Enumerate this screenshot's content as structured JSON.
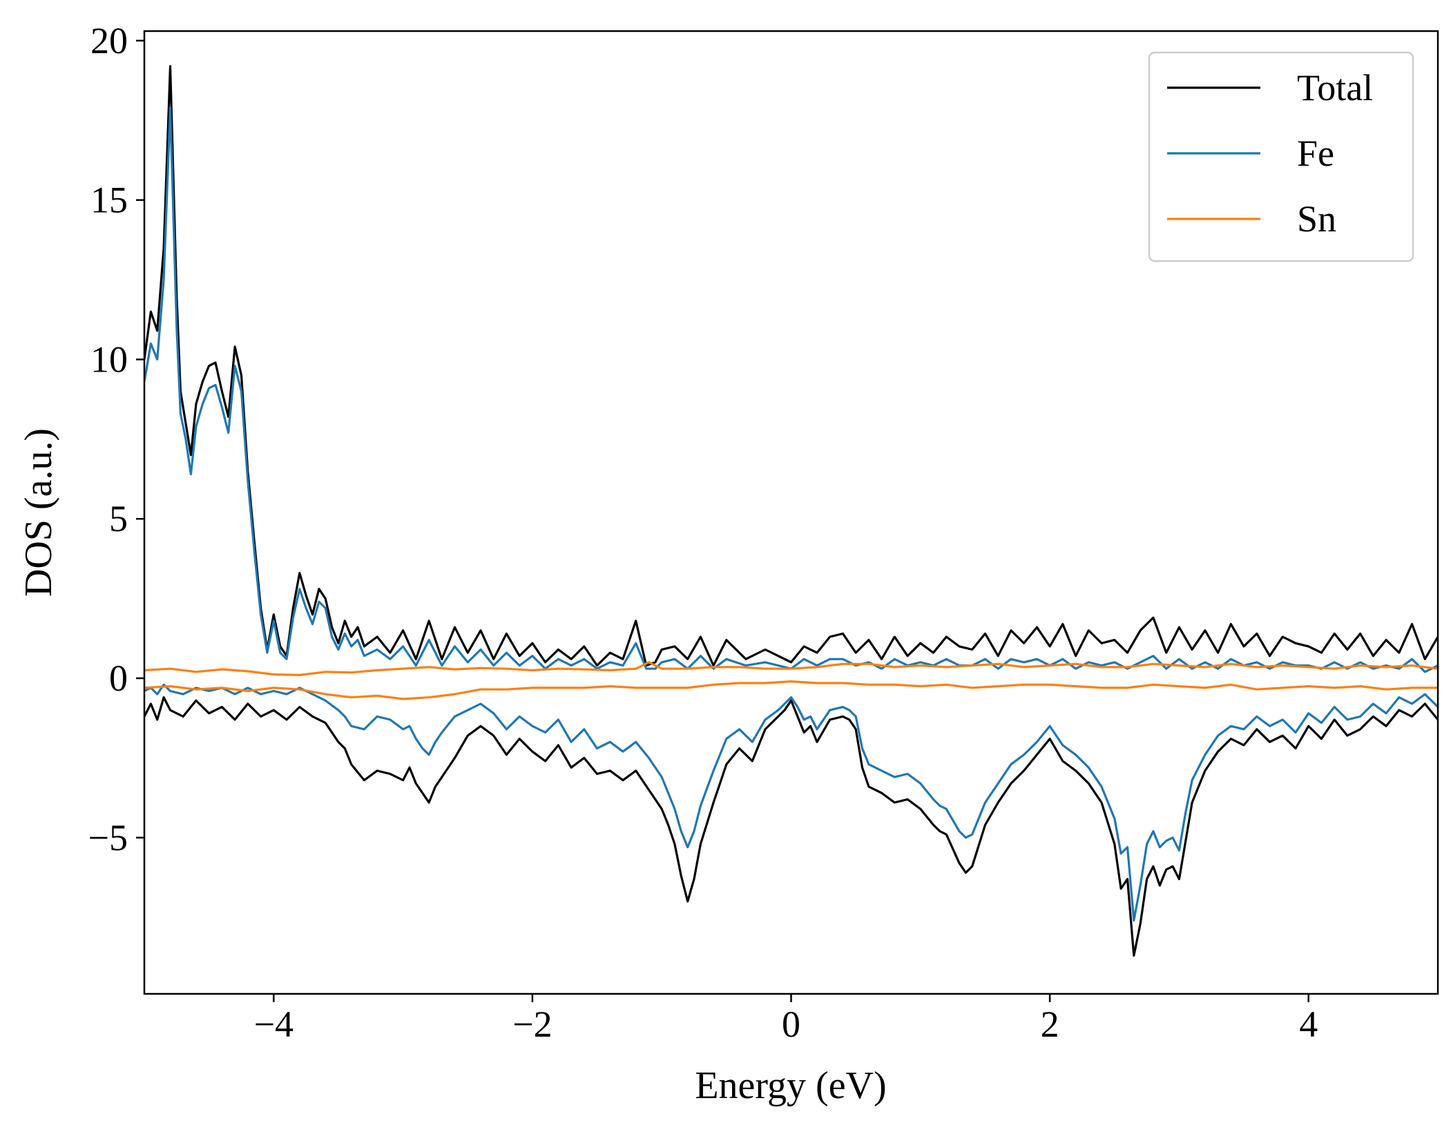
{
  "chart_data": {
    "type": "line",
    "xlabel": "Energy (eV)",
    "ylabel": "DOS (a.u.)",
    "xlim": [
      -5,
      5
    ],
    "ylim": [
      -9.9,
      20.3
    ],
    "x_ticks": [
      -4,
      -2,
      0,
      2,
      4
    ],
    "x_tick_labels": [
      "−4",
      "−2",
      "0",
      "2",
      "4"
    ],
    "y_ticks": [
      -5,
      0,
      5,
      10,
      15,
      20
    ],
    "y_tick_labels": [
      "−5",
      "0",
      "5",
      "10",
      "15",
      "20"
    ],
    "grid": false,
    "legend_position": "top-right",
    "series": [
      {
        "name": "Total",
        "color": "#000000",
        "spin": "up",
        "x": [
          -5.0,
          -4.95,
          -4.9,
          -4.85,
          -4.8,
          -4.75,
          -4.72,
          -4.68,
          -4.64,
          -4.6,
          -4.55,
          -4.5,
          -4.45,
          -4.4,
          -4.35,
          -4.3,
          -4.25,
          -4.2,
          -4.15,
          -4.1,
          -4.05,
          -4.0,
          -3.95,
          -3.9,
          -3.85,
          -3.8,
          -3.75,
          -3.7,
          -3.65,
          -3.6,
          -3.55,
          -3.5,
          -3.45,
          -3.4,
          -3.35,
          -3.3,
          -3.2,
          -3.1,
          -3.0,
          -2.9,
          -2.8,
          -2.7,
          -2.6,
          -2.5,
          -2.4,
          -2.3,
          -2.2,
          -2.1,
          -2.0,
          -1.9,
          -1.8,
          -1.7,
          -1.6,
          -1.5,
          -1.4,
          -1.3,
          -1.2,
          -1.12,
          -1.05,
          -1.0,
          -0.9,
          -0.8,
          -0.7,
          -0.6,
          -0.5,
          -0.35,
          -0.2,
          -0.1,
          0.0,
          0.1,
          0.2,
          0.3,
          0.4,
          0.5,
          0.6,
          0.7,
          0.8,
          0.9,
          1.0,
          1.1,
          1.2,
          1.3,
          1.4,
          1.5,
          1.6,
          1.7,
          1.8,
          1.9,
          2.0,
          2.1,
          2.2,
          2.3,
          2.4,
          2.5,
          2.6,
          2.7,
          2.8,
          2.9,
          3.0,
          3.1,
          3.2,
          3.3,
          3.4,
          3.5,
          3.6,
          3.7,
          3.8,
          3.9,
          4.0,
          4.1,
          4.2,
          4.3,
          4.4,
          4.5,
          4.6,
          4.7,
          4.8,
          4.9,
          5.0
        ],
        "values": [
          10.0,
          11.5,
          10.9,
          13.5,
          19.2,
          12.0,
          9.0,
          8.0,
          7.0,
          8.6,
          9.3,
          9.8,
          9.9,
          9.0,
          8.2,
          10.4,
          9.5,
          6.5,
          4.3,
          2.2,
          0.9,
          2.0,
          1.0,
          0.7,
          2.2,
          3.3,
          2.6,
          2.0,
          2.8,
          2.5,
          1.6,
          1.1,
          1.8,
          1.3,
          1.6,
          1.0,
          1.3,
          0.8,
          1.5,
          0.6,
          1.8,
          0.6,
          1.6,
          0.8,
          1.5,
          0.6,
          1.4,
          0.7,
          1.1,
          0.5,
          0.9,
          0.6,
          1.0,
          0.4,
          0.8,
          0.6,
          1.8,
          0.4,
          0.5,
          0.9,
          1.0,
          0.6,
          1.3,
          0.4,
          1.2,
          0.6,
          0.9,
          0.7,
          0.5,
          1.0,
          0.8,
          1.3,
          1.4,
          0.8,
          1.2,
          0.6,
          1.3,
          0.7,
          1.1,
          0.8,
          1.3,
          1.0,
          0.9,
          1.4,
          0.7,
          1.5,
          1.1,
          1.6,
          1.0,
          1.7,
          0.7,
          1.5,
          1.1,
          1.2,
          0.8,
          1.5,
          1.9,
          0.8,
          1.6,
          0.9,
          1.5,
          0.8,
          1.7,
          1.0,
          1.4,
          0.7,
          1.3,
          1.1,
          1.0,
          0.8,
          1.4,
          0.9,
          1.4,
          0.7,
          1.2,
          0.8,
          1.7,
          0.6,
          1.3
        ]
      },
      {
        "name": "Fe",
        "color": "#1f77b4",
        "spin": "up",
        "x": [
          -5.0,
          -4.95,
          -4.9,
          -4.85,
          -4.8,
          -4.75,
          -4.72,
          -4.68,
          -4.64,
          -4.6,
          -4.55,
          -4.5,
          -4.45,
          -4.4,
          -4.35,
          -4.3,
          -4.25,
          -4.2,
          -4.15,
          -4.1,
          -4.05,
          -4.0,
          -3.95,
          -3.9,
          -3.85,
          -3.8,
          -3.75,
          -3.7,
          -3.65,
          -3.6,
          -3.55,
          -3.5,
          -3.45,
          -3.4,
          -3.35,
          -3.3,
          -3.2,
          -3.1,
          -3.0,
          -2.9,
          -2.8,
          -2.7,
          -2.6,
          -2.5,
          -2.4,
          -2.3,
          -2.2,
          -2.1,
          -2.0,
          -1.9,
          -1.8,
          -1.7,
          -1.6,
          -1.5,
          -1.4,
          -1.3,
          -1.2,
          -1.12,
          -1.05,
          -1.0,
          -0.9,
          -0.8,
          -0.7,
          -0.6,
          -0.5,
          -0.35,
          -0.2,
          -0.1,
          0.0,
          0.1,
          0.2,
          0.3,
          0.4,
          0.5,
          0.6,
          0.7,
          0.8,
          0.9,
          1.0,
          1.1,
          1.2,
          1.3,
          1.4,
          1.5,
          1.6,
          1.7,
          1.8,
          1.9,
          2.0,
          2.1,
          2.2,
          2.3,
          2.4,
          2.5,
          2.6,
          2.7,
          2.8,
          2.9,
          3.0,
          3.1,
          3.2,
          3.3,
          3.4,
          3.5,
          3.6,
          3.7,
          3.8,
          3.9,
          4.0,
          4.1,
          4.2,
          4.3,
          4.4,
          4.5,
          4.6,
          4.7,
          4.8,
          4.9,
          5.0
        ],
        "values": [
          9.3,
          10.5,
          10.0,
          12.5,
          17.9,
          11.0,
          8.3,
          7.5,
          6.4,
          7.9,
          8.6,
          9.1,
          9.2,
          8.5,
          7.7,
          9.8,
          9.0,
          6.2,
          4.0,
          2.0,
          0.8,
          1.8,
          0.8,
          0.6,
          1.9,
          2.8,
          2.2,
          1.7,
          2.4,
          2.2,
          1.3,
          0.9,
          1.4,
          1.0,
          1.2,
          0.7,
          0.9,
          0.6,
          1.0,
          0.4,
          1.2,
          0.4,
          1.0,
          0.5,
          0.9,
          0.4,
          0.8,
          0.4,
          0.7,
          0.3,
          0.6,
          0.4,
          0.6,
          0.3,
          0.5,
          0.4,
          1.1,
          0.3,
          0.3,
          0.5,
          0.6,
          0.3,
          0.7,
          0.3,
          0.6,
          0.4,
          0.5,
          0.4,
          0.3,
          0.6,
          0.4,
          0.6,
          0.6,
          0.4,
          0.5,
          0.3,
          0.6,
          0.4,
          0.5,
          0.4,
          0.6,
          0.4,
          0.4,
          0.6,
          0.3,
          0.6,
          0.5,
          0.6,
          0.4,
          0.6,
          0.3,
          0.5,
          0.4,
          0.5,
          0.3,
          0.5,
          0.7,
          0.3,
          0.6,
          0.3,
          0.5,
          0.3,
          0.6,
          0.4,
          0.5,
          0.3,
          0.5,
          0.4,
          0.4,
          0.3,
          0.5,
          0.3,
          0.5,
          0.3,
          0.4,
          0.3,
          0.6,
          0.2,
          0.4
        ]
      },
      {
        "name": "Sn",
        "color": "#ff7f0e",
        "spin": "up",
        "x": [
          -5.0,
          -4.8,
          -4.6,
          -4.4,
          -4.2,
          -4.0,
          -3.8,
          -3.6,
          -3.4,
          -3.2,
          -3.0,
          -2.8,
          -2.6,
          -2.4,
          -2.2,
          -2.0,
          -1.8,
          -1.6,
          -1.4,
          -1.2,
          -1.1,
          -1.0,
          -0.8,
          -0.6,
          -0.4,
          -0.2,
          0.0,
          0.2,
          0.4,
          0.6,
          0.8,
          1.0,
          1.2,
          1.4,
          1.6,
          1.8,
          2.0,
          2.2,
          2.4,
          2.6,
          2.8,
          3.0,
          3.2,
          3.4,
          3.6,
          3.8,
          4.0,
          4.2,
          4.4,
          4.6,
          4.8,
          5.0
        ],
        "values": [
          0.25,
          0.3,
          0.2,
          0.28,
          0.22,
          0.12,
          0.1,
          0.2,
          0.18,
          0.25,
          0.3,
          0.35,
          0.28,
          0.32,
          0.3,
          0.25,
          0.3,
          0.28,
          0.25,
          0.3,
          0.5,
          0.3,
          0.3,
          0.35,
          0.35,
          0.3,
          0.3,
          0.35,
          0.45,
          0.45,
          0.35,
          0.4,
          0.35,
          0.4,
          0.45,
          0.35,
          0.4,
          0.45,
          0.35,
          0.35,
          0.45,
          0.4,
          0.35,
          0.45,
          0.35,
          0.4,
          0.35,
          0.3,
          0.4,
          0.35,
          0.4,
          0.3
        ]
      },
      {
        "name": "Total",
        "color": "#000000",
        "spin": "down",
        "x": [
          -5.0,
          -4.95,
          -4.9,
          -4.85,
          -4.8,
          -4.7,
          -4.6,
          -4.5,
          -4.4,
          -4.3,
          -4.2,
          -4.1,
          -4.0,
          -3.9,
          -3.8,
          -3.7,
          -3.6,
          -3.5,
          -3.45,
          -3.4,
          -3.3,
          -3.2,
          -3.1,
          -3.0,
          -2.95,
          -2.9,
          -2.85,
          -2.8,
          -2.75,
          -2.7,
          -2.6,
          -2.5,
          -2.4,
          -2.3,
          -2.2,
          -2.1,
          -2.0,
          -1.9,
          -1.8,
          -1.7,
          -1.6,
          -1.5,
          -1.4,
          -1.3,
          -1.2,
          -1.1,
          -1.0,
          -0.95,
          -0.9,
          -0.85,
          -0.8,
          -0.75,
          -0.7,
          -0.6,
          -0.55,
          -0.5,
          -0.4,
          -0.3,
          -0.2,
          -0.1,
          -0.05,
          0.0,
          0.05,
          0.1,
          0.15,
          0.2,
          0.3,
          0.4,
          0.45,
          0.5,
          0.55,
          0.6,
          0.7,
          0.8,
          0.9,
          1.0,
          1.1,
          1.15,
          1.2,
          1.3,
          1.35,
          1.4,
          1.5,
          1.6,
          1.7,
          1.8,
          1.9,
          2.0,
          2.1,
          2.2,
          2.3,
          2.4,
          2.5,
          2.55,
          2.6,
          2.65,
          2.7,
          2.75,
          2.8,
          2.85,
          2.9,
          2.95,
          3.0,
          3.05,
          3.1,
          3.2,
          3.3,
          3.4,
          3.5,
          3.6,
          3.7,
          3.8,
          3.9,
          4.0,
          4.1,
          4.2,
          4.3,
          4.4,
          4.5,
          4.6,
          4.7,
          4.8,
          4.9,
          5.0
        ],
        "values": [
          -1.2,
          -0.8,
          -1.3,
          -0.6,
          -1.0,
          -1.2,
          -0.7,
          -1.1,
          -0.9,
          -1.3,
          -0.8,
          -1.2,
          -1.0,
          -1.3,
          -0.9,
          -1.2,
          -1.4,
          -2.0,
          -2.2,
          -2.7,
          -3.2,
          -2.9,
          -3.0,
          -3.2,
          -2.8,
          -3.3,
          -3.6,
          -3.9,
          -3.4,
          -3.1,
          -2.5,
          -1.8,
          -1.5,
          -1.8,
          -2.4,
          -1.9,
          -2.3,
          -2.6,
          -2.1,
          -2.8,
          -2.5,
          -3.0,
          -2.9,
          -3.2,
          -2.9,
          -3.5,
          -4.1,
          -4.6,
          -5.2,
          -6.2,
          -7.0,
          -6.3,
          -5.2,
          -3.9,
          -3.3,
          -2.7,
          -2.2,
          -2.6,
          -1.6,
          -1.2,
          -1.0,
          -0.7,
          -1.2,
          -1.7,
          -1.5,
          -2.0,
          -1.3,
          -1.2,
          -1.3,
          -1.6,
          -2.8,
          -3.4,
          -3.6,
          -3.9,
          -3.8,
          -4.1,
          -4.6,
          -4.8,
          -4.9,
          -5.8,
          -6.1,
          -5.9,
          -4.6,
          -3.9,
          -3.3,
          -2.9,
          -2.4,
          -1.9,
          -2.6,
          -2.9,
          -3.3,
          -3.9,
          -5.2,
          -6.6,
          -6.3,
          -8.7,
          -7.7,
          -6.3,
          -5.9,
          -6.5,
          -6.0,
          -5.9,
          -6.3,
          -5.1,
          -3.9,
          -2.9,
          -2.3,
          -1.9,
          -2.1,
          -1.6,
          -2.0,
          -1.8,
          -2.2,
          -1.5,
          -1.9,
          -1.3,
          -1.8,
          -1.6,
          -1.2,
          -1.5,
          -1.0,
          -1.2,
          -0.8,
          -1.3
        ]
      },
      {
        "name": "Fe",
        "color": "#1f77b4",
        "spin": "down",
        "x": [
          -5.0,
          -4.95,
          -4.9,
          -4.85,
          -4.8,
          -4.7,
          -4.6,
          -4.5,
          -4.4,
          -4.3,
          -4.2,
          -4.1,
          -4.0,
          -3.9,
          -3.8,
          -3.7,
          -3.6,
          -3.5,
          -3.45,
          -3.4,
          -3.3,
          -3.2,
          -3.1,
          -3.0,
          -2.95,
          -2.9,
          -2.85,
          -2.8,
          -2.75,
          -2.7,
          -2.6,
          -2.5,
          -2.4,
          -2.3,
          -2.2,
          -2.1,
          -2.0,
          -1.9,
          -1.8,
          -1.7,
          -1.6,
          -1.5,
          -1.4,
          -1.3,
          -1.2,
          -1.1,
          -1.0,
          -0.95,
          -0.9,
          -0.85,
          -0.8,
          -0.75,
          -0.7,
          -0.6,
          -0.55,
          -0.5,
          -0.4,
          -0.3,
          -0.2,
          -0.1,
          -0.05,
          0.0,
          0.05,
          0.1,
          0.15,
          0.2,
          0.3,
          0.4,
          0.45,
          0.5,
          0.55,
          0.6,
          0.7,
          0.8,
          0.9,
          1.0,
          1.1,
          1.15,
          1.2,
          1.3,
          1.35,
          1.4,
          1.5,
          1.6,
          1.7,
          1.8,
          1.9,
          2.0,
          2.1,
          2.2,
          2.3,
          2.4,
          2.5,
          2.55,
          2.6,
          2.65,
          2.7,
          2.75,
          2.8,
          2.85,
          2.9,
          2.95,
          3.0,
          3.05,
          3.1,
          3.2,
          3.3,
          3.4,
          3.5,
          3.6,
          3.7,
          3.8,
          3.9,
          4.0,
          4.1,
          4.2,
          4.3,
          4.4,
          4.5,
          4.6,
          4.7,
          4.8,
          4.9,
          5.0
        ],
        "values": [
          -0.4,
          -0.3,
          -0.5,
          -0.2,
          -0.4,
          -0.5,
          -0.3,
          -0.4,
          -0.3,
          -0.5,
          -0.3,
          -0.5,
          -0.4,
          -0.5,
          -0.3,
          -0.5,
          -0.7,
          -1.0,
          -1.2,
          -1.5,
          -1.6,
          -1.2,
          -1.3,
          -1.6,
          -1.5,
          -1.9,
          -2.2,
          -2.4,
          -2.0,
          -1.7,
          -1.2,
          -1.0,
          -0.8,
          -1.1,
          -1.6,
          -1.2,
          -1.5,
          -1.7,
          -1.3,
          -2.0,
          -1.6,
          -2.2,
          -2.0,
          -2.3,
          -2.0,
          -2.5,
          -3.1,
          -3.6,
          -4.1,
          -4.8,
          -5.3,
          -4.8,
          -4.0,
          -2.9,
          -2.4,
          -1.9,
          -1.6,
          -2.0,
          -1.3,
          -1.0,
          -0.8,
          -0.6,
          -0.9,
          -1.3,
          -1.2,
          -1.6,
          -1.0,
          -0.9,
          -1.0,
          -1.2,
          -2.2,
          -2.7,
          -2.9,
          -3.1,
          -3.0,
          -3.3,
          -3.8,
          -4.0,
          -4.1,
          -4.8,
          -5.0,
          -4.9,
          -3.9,
          -3.3,
          -2.7,
          -2.4,
          -2.0,
          -1.5,
          -2.1,
          -2.4,
          -2.8,
          -3.4,
          -4.4,
          -5.5,
          -5.3,
          -7.6,
          -6.5,
          -5.2,
          -4.8,
          -5.3,
          -5.1,
          -5.0,
          -5.4,
          -4.2,
          -3.2,
          -2.4,
          -1.8,
          -1.5,
          -1.6,
          -1.2,
          -1.5,
          -1.3,
          -1.7,
          -1.1,
          -1.4,
          -0.9,
          -1.3,
          -1.2,
          -0.8,
          -1.1,
          -0.6,
          -0.8,
          -0.5,
          -0.9
        ]
      },
      {
        "name": "Sn",
        "color": "#ff7f0e",
        "spin": "down",
        "x": [
          -5.0,
          -4.8,
          -4.6,
          -4.4,
          -4.2,
          -4.0,
          -3.8,
          -3.6,
          -3.4,
          -3.2,
          -3.0,
          -2.8,
          -2.6,
          -2.4,
          -2.2,
          -2.0,
          -1.8,
          -1.6,
          -1.4,
          -1.2,
          -1.0,
          -0.8,
          -0.6,
          -0.4,
          -0.2,
          0.0,
          0.2,
          0.4,
          0.6,
          0.8,
          1.0,
          1.2,
          1.4,
          1.6,
          1.8,
          2.0,
          2.2,
          2.4,
          2.6,
          2.8,
          3.0,
          3.2,
          3.4,
          3.6,
          3.8,
          4.0,
          4.2,
          4.4,
          4.6,
          4.8,
          5.0
        ],
        "values": [
          -0.3,
          -0.25,
          -0.35,
          -0.3,
          -0.4,
          -0.3,
          -0.35,
          -0.5,
          -0.6,
          -0.55,
          -0.65,
          -0.6,
          -0.5,
          -0.35,
          -0.35,
          -0.3,
          -0.3,
          -0.3,
          -0.25,
          -0.3,
          -0.3,
          -0.3,
          -0.2,
          -0.15,
          -0.15,
          -0.1,
          -0.15,
          -0.15,
          -0.2,
          -0.2,
          -0.25,
          -0.2,
          -0.3,
          -0.25,
          -0.2,
          -0.2,
          -0.25,
          -0.3,
          -0.3,
          -0.2,
          -0.25,
          -0.3,
          -0.2,
          -0.35,
          -0.3,
          -0.25,
          -0.3,
          -0.25,
          -0.35,
          -0.3,
          -0.3
        ]
      }
    ]
  }
}
